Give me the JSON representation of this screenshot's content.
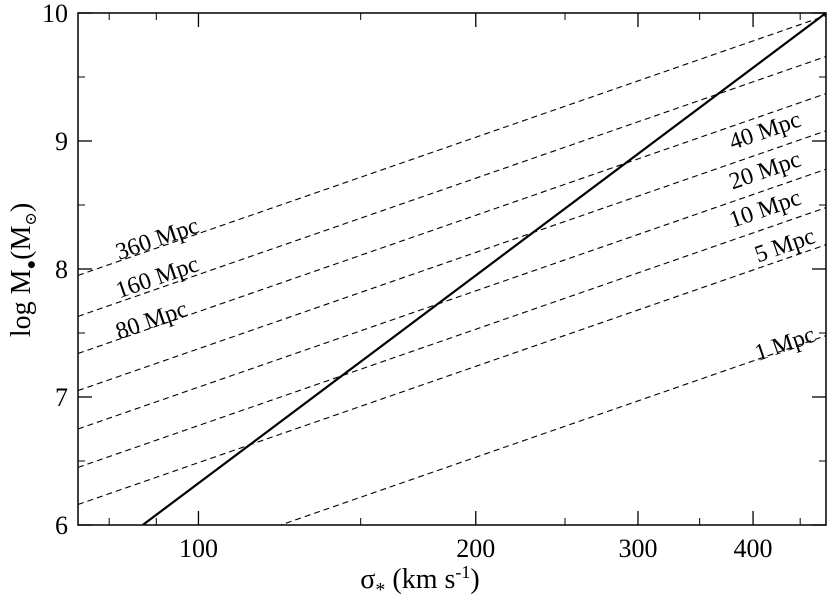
{
  "chart_data": {
    "type": "line",
    "xscale": "log",
    "xlim": [
      74,
      480
    ],
    "ylim": [
      6,
      10
    ],
    "xticks": [
      100,
      200,
      300,
      400
    ],
    "xtick_labels": [
      "100",
      "200",
      "300",
      "400"
    ],
    "yticks": [
      6,
      7,
      8,
      9,
      10
    ],
    "ytick_labels": [
      "6",
      "7",
      "8",
      "9",
      "10"
    ],
    "xlabel": {
      "main": "σ",
      "sub": "*",
      "rest": " (km s",
      "sup": "-1",
      "close": ")"
    },
    "ylabel": {
      "main": "log M",
      "sub": "●",
      "rest": "(M",
      "sub2": "⊙",
      "close": ")"
    },
    "grid": false,
    "series": [
      {
        "style": "solid",
        "x": [
          87,
          480
        ],
        "y": [
          6.0,
          10.0
        ]
      },
      {
        "name": "360 Mpc",
        "style": "dashed",
        "x": [
          74,
          480
        ],
        "y": [
          7.95,
          9.98
        ]
      },
      {
        "name": "160 Mpc",
        "style": "dashed",
        "x": [
          74,
          480
        ],
        "y": [
          7.63,
          9.66
        ]
      },
      {
        "name": "80 Mpc",
        "style": "dashed",
        "x": [
          74,
          480
        ],
        "y": [
          7.34,
          9.37
        ]
      },
      {
        "name": "40 Mpc",
        "style": "dashed",
        "x": [
          74,
          480
        ],
        "y": [
          7.05,
          9.08
        ]
      },
      {
        "name": "20 Mpc",
        "style": "dashed",
        "x": [
          74,
          480
        ],
        "y": [
          6.75,
          8.78
        ]
      },
      {
        "name": "10 Mpc",
        "style": "dashed",
        "x": [
          74,
          480
        ],
        "y": [
          6.45,
          8.48
        ]
      },
      {
        "name": "5 Mpc",
        "style": "dashed",
        "x": [
          74,
          480
        ],
        "y": [
          6.16,
          8.19
        ]
      },
      {
        "name": "1 Mpc",
        "style": "dashed",
        "x": [
          74,
          480
        ],
        "y": [
          5.45,
          7.48
        ]
      }
    ],
    "annotations": [
      {
        "text": "360 Mpc",
        "x": 82,
        "y": 8.07,
        "series": 1
      },
      {
        "text": "160 Mpc",
        "x": 82,
        "y": 7.77,
        "series": 2
      },
      {
        "text": "80 Mpc",
        "x": 82,
        "y": 7.45,
        "series": 3
      },
      {
        "text": "40 Mpc",
        "x": 380,
        "y": 8.93,
        "series": 4
      },
      {
        "text": "20 Mpc",
        "x": 380,
        "y": 8.62,
        "series": 5
      },
      {
        "text": "10 Mpc",
        "x": 380,
        "y": 8.32,
        "series": 6
      },
      {
        "text": "5 Mpc",
        "x": 405,
        "y": 8.05,
        "series": 7
      },
      {
        "text": "1 Mpc",
        "x": 405,
        "y": 7.28,
        "series": 8
      }
    ]
  }
}
